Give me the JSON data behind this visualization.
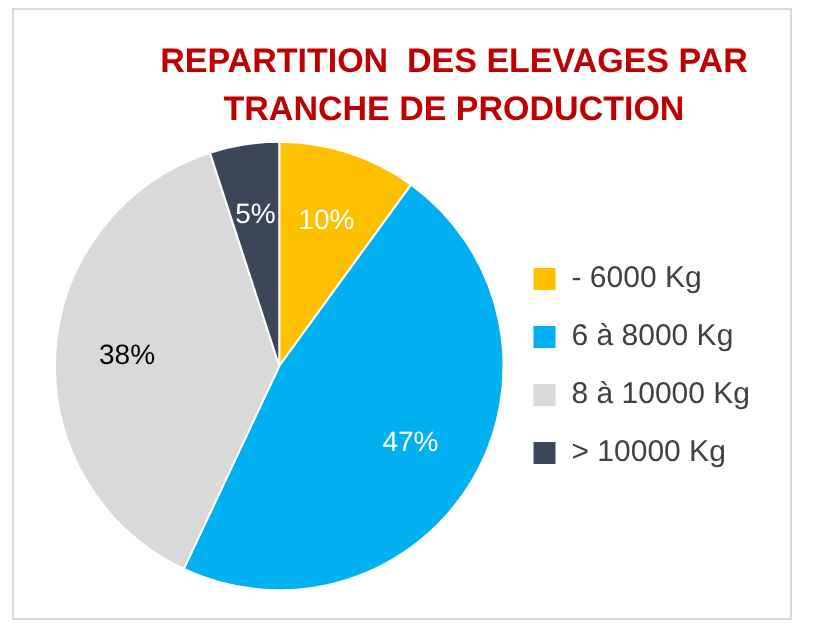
{
  "chart_data": {
    "type": "pie",
    "title": "REPARTITION  DES ELEVAGES PAR TRANCHE DE PRODUCTION",
    "categories": [
      "- 6000 Kg",
      "6 à 8000 Kg",
      "8 à 10000 Kg",
      "> 10000 Kg"
    ],
    "values": [
      10,
      47,
      38,
      5
    ],
    "value_labels": [
      "10%",
      "47%",
      "38%",
      "5%"
    ],
    "colors": [
      "#ffc000",
      "#00b0f0",
      "#d9d9d9",
      "#3b4758"
    ],
    "legend": "right"
  }
}
